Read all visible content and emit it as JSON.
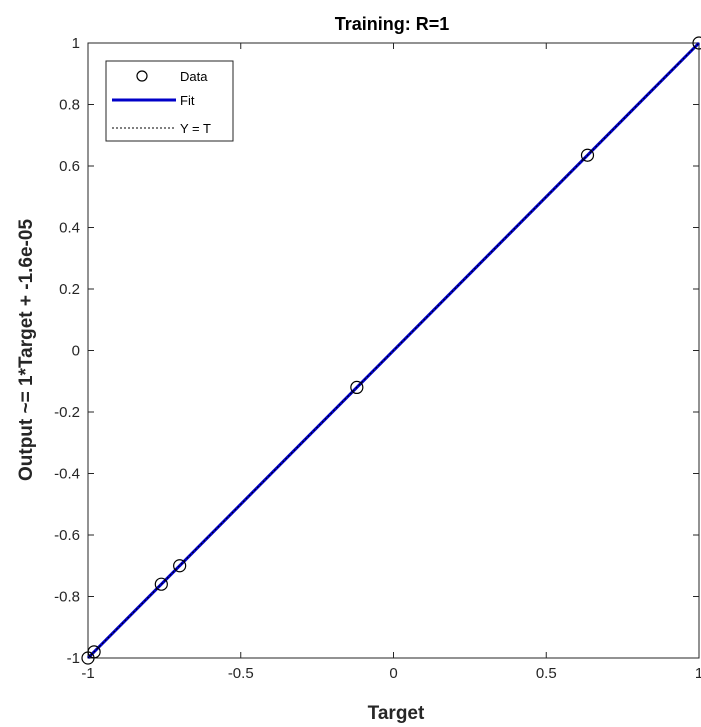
{
  "chart_data": {
    "type": "scatter",
    "title": "Training: R=1",
    "xlabel": "Target",
    "ylabel": "Output ~= 1*Target + -1.6e-05",
    "xlim": [
      -1,
      1
    ],
    "ylim": [
      -1,
      1
    ],
    "x_ticks": [
      -1,
      -0.5,
      0,
      0.5,
      1
    ],
    "x_tick_labels": [
      "-1",
      "-0.5",
      "0",
      "0.5",
      "1"
    ],
    "y_ticks": [
      -1,
      -0.8,
      -0.6,
      -0.4,
      -0.2,
      0,
      0.2,
      0.4,
      0.6,
      0.8,
      1
    ],
    "y_tick_labels": [
      "-1",
      "-0.8",
      "-0.6",
      "-0.4",
      "-0.2",
      "0",
      "0.2",
      "0.4",
      "0.6",
      "0.8",
      "1"
    ],
    "grid": false,
    "legend_position": "top-left",
    "series": [
      {
        "name": "Data",
        "kind": "markers",
        "marker": "open-circle",
        "color": "#000000",
        "points": [
          {
            "x": -1.0,
            "y": -1.0
          },
          {
            "x": -0.98,
            "y": -0.98
          },
          {
            "x": -0.76,
            "y": -0.76
          },
          {
            "x": -0.7,
            "y": -0.7
          },
          {
            "x": -0.12,
            "y": -0.12
          },
          {
            "x": 0.635,
            "y": 0.635
          },
          {
            "x": 1.0,
            "y": 1.0
          }
        ]
      },
      {
        "name": "Fit",
        "kind": "line",
        "color": "#0000c8",
        "slope": 1,
        "intercept": -1.6e-05
      },
      {
        "name": "Y = T",
        "kind": "dotted-line",
        "color": "#000000",
        "slope": 1,
        "intercept": 0
      }
    ]
  }
}
